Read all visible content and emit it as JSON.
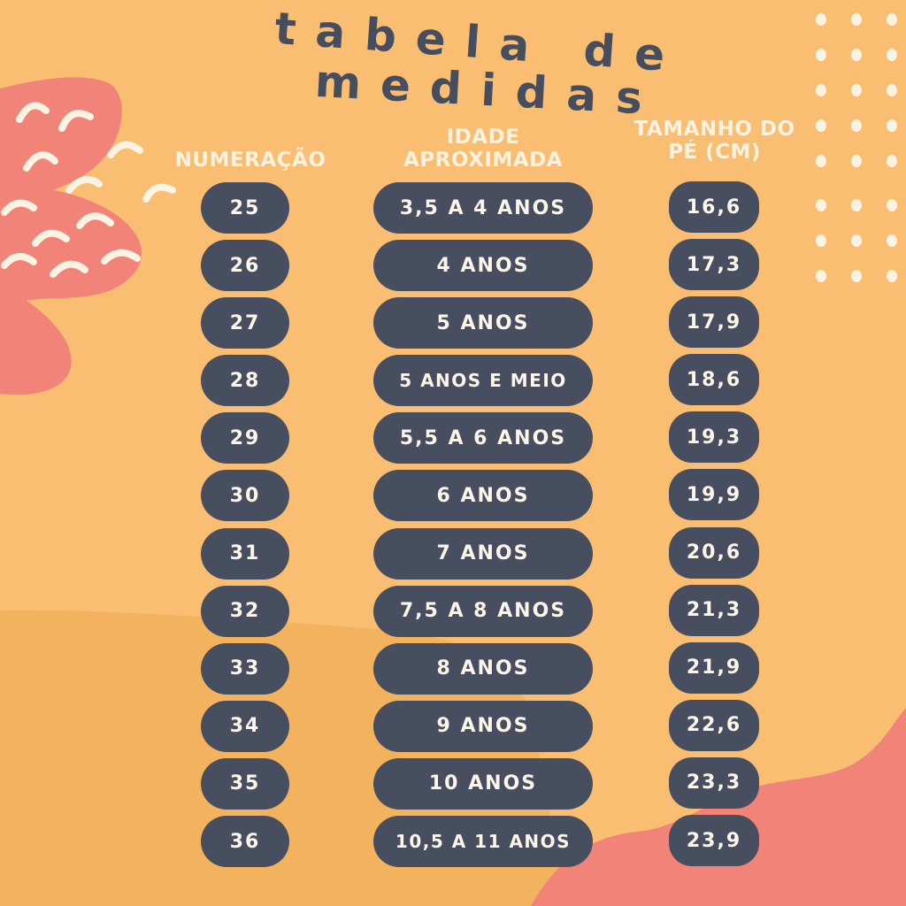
{
  "title": {
    "line1": "tabela de",
    "line2": "medidas"
  },
  "headers": {
    "numeracao": "NUMERAÇÃO",
    "idade_line1": "IDADE",
    "idade_line2": "APROXIMADA",
    "tamanho_line1": "TAMANHO DO",
    "tamanho_line2": "PÉ (CM)"
  },
  "rows": [
    {
      "numeracao": "25",
      "idade": "3,5 A 4 ANOS",
      "tamanho": "16,6"
    },
    {
      "numeracao": "26",
      "idade": "4 ANOS",
      "tamanho": "17,3"
    },
    {
      "numeracao": "27",
      "idade": "5 ANOS",
      "tamanho": "17,9"
    },
    {
      "numeracao": "28",
      "idade": "5 ANOS E MEIO",
      "tamanho": "18,6"
    },
    {
      "numeracao": "29",
      "idade": "5,5 A 6 ANOS",
      "tamanho": "19,3"
    },
    {
      "numeracao": "30",
      "idade": "6 ANOS",
      "tamanho": "19,9"
    },
    {
      "numeracao": "31",
      "idade": "7 ANOS",
      "tamanho": "20,6"
    },
    {
      "numeracao": "32",
      "idade": "7,5 A 8 ANOS",
      "tamanho": "21,3"
    },
    {
      "numeracao": "33",
      "idade": "8 ANOS",
      "tamanho": "21,9"
    },
    {
      "numeracao": "34",
      "idade": "9 ANOS",
      "tamanho": "22,6"
    },
    {
      "numeracao": "35",
      "idade": "10 ANOS",
      "tamanho": "23,3"
    },
    {
      "numeracao": "36",
      "idade": "10,5 A 11 ANOS",
      "tamanho": "23,9"
    }
  ],
  "colors": {
    "background": "#f9be72",
    "lower_wave": "#f3b25e",
    "coral": "#f28379",
    "pill": "#464e5f",
    "pill_text": "#fdf5ea",
    "header_text": "#fdf2df",
    "title_text": "#454d5f",
    "dots": "#fdf3e3"
  }
}
